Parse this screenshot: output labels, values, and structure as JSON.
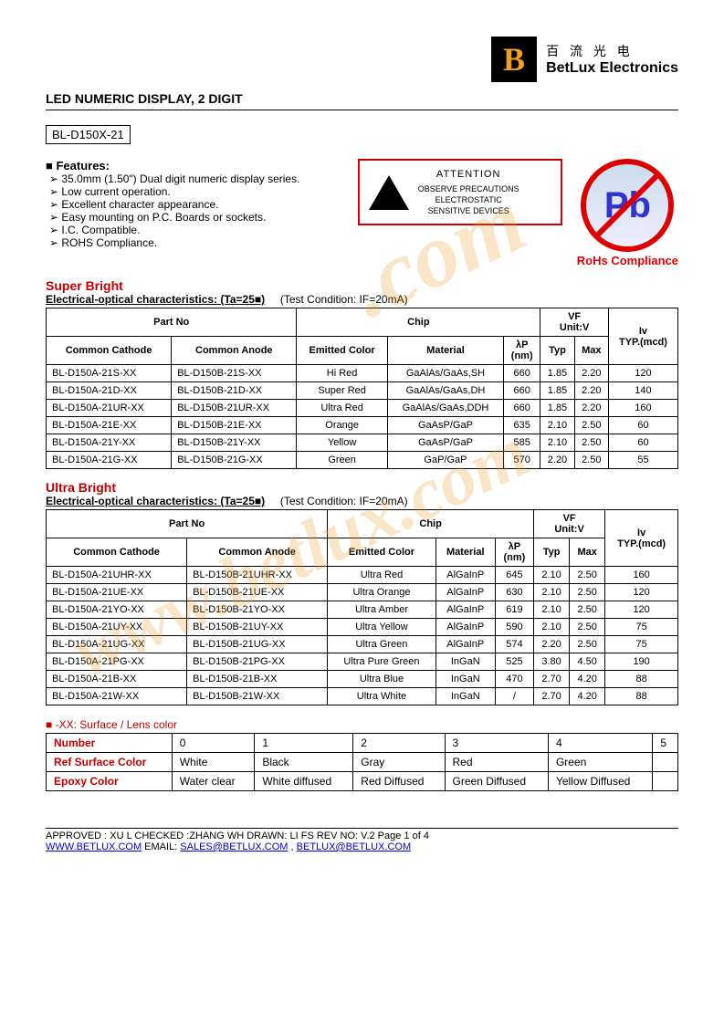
{
  "logo": {
    "letter": "B",
    "cn": "百 流 光 电",
    "en": "BetLux Electronics"
  },
  "watermark1": ".com",
  "watermark2": "www.betlux.com",
  "title": "LED NUMERIC DISPLAY, 2 DIGIT",
  "part": "BL-D150X-21",
  "features": {
    "heading": "Features:",
    "items": [
      "35.0mm (1.50\") Dual digit numeric display series.",
      "Low current operation.",
      "Excellent character appearance.",
      "Easy mounting on P.C. Boards or sockets.",
      "I.C. Compatible.",
      "ROHS Compliance."
    ]
  },
  "esd": {
    "attention": "ATTENTION",
    "line1": "OBSERVE PRECAUTIONS",
    "line2": "ELECTROSTATIC",
    "line3": "SENSITIVE DEVICES"
  },
  "rohs": {
    "symbol": "Pb",
    "label": "RoHs Compliance"
  },
  "superBright": {
    "title": "Super Bright",
    "caption": "Electrical-optical characteristics: (Ta=25■)",
    "condition": "(Test Condition: IF=20mA)",
    "headers": {
      "partno": "Part No",
      "chip": "Chip",
      "vf": "VF",
      "vfunit": "Unit:V",
      "iv": "Iv",
      "ivunit": "TYP.(mcd)",
      "cc": "Common Cathode",
      "ca": "Common Anode",
      "ecolor": "Emitted Color",
      "mat": "Material",
      "lp": "λP",
      "lpunit": "(nm)",
      "typ": "Typ",
      "max": "Max"
    },
    "rows": [
      {
        "cc": "BL-D150A-21S-XX",
        "ca": "BL-D150B-21S-XX",
        "ec": "Hi Red",
        "mat": "GaAlAs/GaAs,SH",
        "lp": "660",
        "typ": "1.85",
        "max": "2.20",
        "iv": "120"
      },
      {
        "cc": "BL-D150A-21D-XX",
        "ca": "BL-D150B-21D-XX",
        "ec": "Super Red",
        "mat": "GaAlAs/GaAs,DH",
        "lp": "660",
        "typ": "1.85",
        "max": "2.20",
        "iv": "140"
      },
      {
        "cc": "BL-D150A-21UR-XX",
        "ca": "BL-D150B-21UR-XX",
        "ec": "Ultra Red",
        "mat": "GaAlAs/GaAs,DDH",
        "lp": "660",
        "typ": "1.85",
        "max": "2.20",
        "iv": "160"
      },
      {
        "cc": "BL-D150A-21E-XX",
        "ca": "BL-D150B-21E-XX",
        "ec": "Orange",
        "mat": "GaAsP/GaP",
        "lp": "635",
        "typ": "2.10",
        "max": "2.50",
        "iv": "60"
      },
      {
        "cc": "BL-D150A-21Y-XX",
        "ca": "BL-D150B-21Y-XX",
        "ec": "Yellow",
        "mat": "GaAsP/GaP",
        "lp": "585",
        "typ": "2.10",
        "max": "2.50",
        "iv": "60"
      },
      {
        "cc": "BL-D150A-21G-XX",
        "ca": "BL-D150B-21G-XX",
        "ec": "Green",
        "mat": "GaP/GaP",
        "lp": "570",
        "typ": "2.20",
        "max": "2.50",
        "iv": "55"
      }
    ]
  },
  "ultraBright": {
    "title": "Ultra Bright",
    "caption": "Electrical-optical characteristics: (Ta=25■)",
    "condition": "(Test Condition: IF=20mA)",
    "headers": {
      "partno": "Part No",
      "chip": "Chip",
      "vf": "VF",
      "vfunit": "Unit:V",
      "iv": "Iv",
      "ivunit": "TYP.(mcd)",
      "cc": "Common Cathode",
      "ca": "Common Anode",
      "ecolor": "Emitted Color",
      "mat": "Material",
      "lp": "λP",
      "lpunit": "(nm)",
      "typ": "Typ",
      "max": "Max"
    },
    "rows": [
      {
        "cc": "BL-D150A-21UHR-XX",
        "ca": "BL-D150B-21UHR-XX",
        "ec": "Ultra Red",
        "mat": "AlGaInP",
        "lp": "645",
        "typ": "2.10",
        "max": "2.50",
        "iv": "160"
      },
      {
        "cc": "BL-D150A-21UE-XX",
        "ca": "BL-D150B-21UE-XX",
        "ec": "Ultra Orange",
        "mat": "AlGaInP",
        "lp": "630",
        "typ": "2.10",
        "max": "2.50",
        "iv": "120"
      },
      {
        "cc": "BL-D150A-21YO-XX",
        "ca": "BL-D150B-21YO-XX",
        "ec": "Ultra Amber",
        "mat": "AlGaInP",
        "lp": "619",
        "typ": "2.10",
        "max": "2.50",
        "iv": "120"
      },
      {
        "cc": "BL-D150A-21UY-XX",
        "ca": "BL-D150B-21UY-XX",
        "ec": "Ultra Yellow",
        "mat": "AlGaInP",
        "lp": "590",
        "typ": "2.10",
        "max": "2.50",
        "iv": "75"
      },
      {
        "cc": "BL-D150A-21UG-XX",
        "ca": "BL-D150B-21UG-XX",
        "ec": "Ultra Green",
        "mat": "AlGaInP",
        "lp": "574",
        "typ": "2.20",
        "max": "2.50",
        "iv": "75"
      },
      {
        "cc": "BL-D150A-21PG-XX",
        "ca": "BL-D150B-21PG-XX",
        "ec": "Ultra Pure Green",
        "mat": "InGaN",
        "lp": "525",
        "typ": "3.80",
        "max": "4.50",
        "iv": "190"
      },
      {
        "cc": "BL-D150A-21B-XX",
        "ca": "BL-D150B-21B-XX",
        "ec": "Ultra Blue",
        "mat": "InGaN",
        "lp": "470",
        "typ": "2.70",
        "max": "4.20",
        "iv": "88"
      },
      {
        "cc": "BL-D150A-21W-XX",
        "ca": "BL-D150B-21W-XX",
        "ec": "Ultra White",
        "mat": "InGaN",
        "lp": "/",
        "typ": "2.70",
        "max": "4.20",
        "iv": "88"
      }
    ]
  },
  "lens": {
    "title": "-XX: Surface / Lens color",
    "rows": [
      {
        "label": "Number",
        "c": [
          "0",
          "1",
          "2",
          "3",
          "4",
          "5"
        ]
      },
      {
        "label": "Ref Surface Color",
        "c": [
          "White",
          "Black",
          "Gray",
          "Red",
          "Green",
          ""
        ]
      },
      {
        "label": "Epoxy Color",
        "c": [
          "Water clear",
          "White diffused",
          "Red Diffused",
          "Green Diffused",
          "Yellow Diffused",
          ""
        ]
      }
    ]
  },
  "footer": {
    "line1a": "APPROVED : XU L    CHECKED :ZHANG WH    DRAWN: LI FS       REV NO: V.2      Page 1 of 4",
    "site": "WWW.BETLUX.COM",
    "emailLabel": "       EMAIL: ",
    "email1": "SALES@BETLUX.COM",
    "sep": " , ",
    "email2": "BETLUX@BETLUX.COM"
  }
}
